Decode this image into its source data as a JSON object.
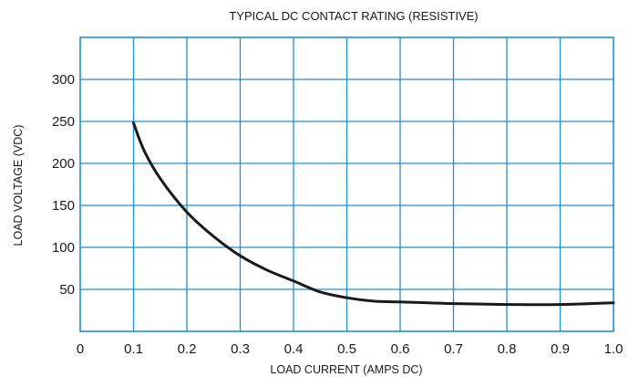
{
  "chart_data": {
    "type": "line",
    "title": "TYPICAL DC CONTACT RATING (RESISTIVE)",
    "xlabel": "LOAD CURRENT (AMPS DC)",
    "ylabel": "LOAD VOLTAGE (VDC)",
    "xlim": [
      0,
      1.0
    ],
    "ylim": [
      0,
      350
    ],
    "grid": true,
    "x_ticks": [
      0,
      0.1,
      0.2,
      0.3,
      0.4,
      0.5,
      0.6,
      0.7,
      0.8,
      0.9,
      1.0
    ],
    "x_tick_labels": [
      "0",
      "0.1",
      "0.2",
      "0.3",
      "0.4",
      "0.5",
      "0.6",
      "0.7",
      "0.8",
      "0.9",
      "1.0"
    ],
    "y_ticks": [
      50,
      100,
      150,
      200,
      250,
      300
    ],
    "y_tick_labels": [
      "50",
      "100",
      "150",
      "200",
      "250",
      "300"
    ],
    "colors": {
      "grid": "#1f8fd6",
      "line": "#1a1a1a"
    },
    "series": [
      {
        "x": [
          0.1,
          0.12,
          0.15,
          0.2,
          0.25,
          0.3,
          0.35,
          0.4,
          0.45,
          0.5,
          0.55,
          0.6,
          0.7,
          0.8,
          0.9,
          1.0
        ],
        "values": [
          248,
          215,
          182,
          142,
          113,
          90,
          73,
          60,
          47,
          40,
          36,
          35,
          33,
          32,
          32,
          34
        ]
      }
    ]
  }
}
